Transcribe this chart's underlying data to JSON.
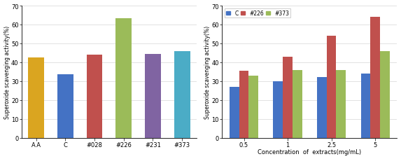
{
  "left_chart": {
    "categories": [
      "A.A",
      "C",
      "#028",
      "#226",
      "#231",
      "#373"
    ],
    "values": [
      42.5,
      33.5,
      44.0,
      63.5,
      44.5,
      46.0
    ],
    "colors": [
      "#DAA520",
      "#4472C4",
      "#C0504D",
      "#9BBB59",
      "#8064A2",
      "#4BACC6"
    ],
    "ylabel": "Superoxide scavenging activity(%)",
    "ylim": [
      0,
      70
    ],
    "yticks": [
      0,
      10,
      20,
      30,
      40,
      50,
      60,
      70
    ]
  },
  "right_chart": {
    "concentrations": [
      "0.5",
      "1",
      "2.5",
      "5"
    ],
    "series": {
      "C": [
        27,
        30,
        32,
        34
      ],
      "#226": [
        35.5,
        43,
        54,
        64
      ],
      "#373": [
        33,
        36,
        36,
        46
      ]
    },
    "colors": {
      "C": "#4472C4",
      "#226": "#C0504D",
      "#373": "#9BBB59"
    },
    "ylabel": "Superoxide scavenging activity(%)",
    "xlabel": "Concentration  of  extracts(mg/mL)",
    "ylim": [
      0,
      70
    ],
    "yticks": [
      0,
      10,
      20,
      30,
      40,
      50,
      60,
      70
    ],
    "bar_width": 0.22,
    "legend_labels": [
      "C",
      "#226",
      "#373"
    ]
  }
}
